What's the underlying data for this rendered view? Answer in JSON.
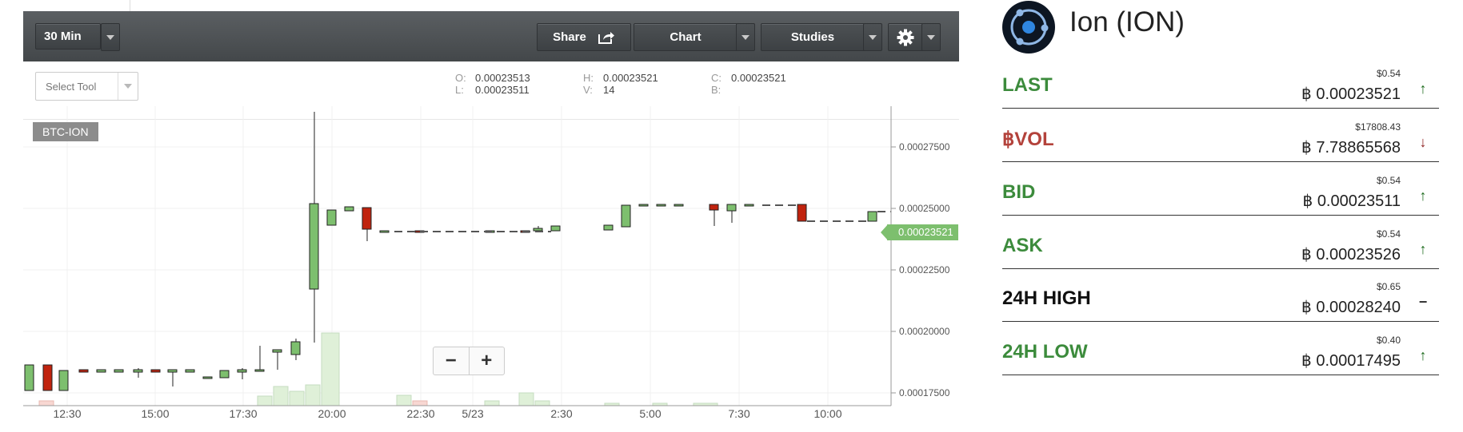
{
  "toolbar": {
    "interval": "30 Min",
    "share": "Share",
    "chart": "Chart",
    "studies": "Studies"
  },
  "infobar": {
    "select_tool": "Select Tool",
    "ohlc": {
      "o_label": "O:",
      "o": "0.00023513",
      "h_label": "H:",
      "h": "0.00023521",
      "c_label": "C:",
      "c": "0.00023521",
      "l_label": "L:",
      "l": "0.00023511",
      "v_label": "V:",
      "v": "14",
      "b_label": "B:",
      "b": ""
    }
  },
  "chart": {
    "pair": "BTC-ION",
    "last_price_tag": "0.00023521",
    "y_ticks": [
      "0.00027500",
      "0.00025000",
      "0.00022500",
      "0.00020000",
      "0.00017500"
    ],
    "x_ticks": [
      "12:30",
      "15:00",
      "17:30",
      "20:00",
      "22:30",
      "5/23",
      "2:30",
      "5:00",
      "7:30",
      "10:00"
    ],
    "zoom_out": "−",
    "zoom_in": "+",
    "colors": {
      "up": "#7dbf6e",
      "down": "#c0230e",
      "volume": "#dff0d8"
    }
  },
  "ticker": {
    "coin_name": "Ion (ION)",
    "rows": [
      {
        "label": "LAST",
        "usd": "$0.54",
        "btc": "฿ 0.00023521",
        "arrow": "↑",
        "color": "#3c8b3c",
        "arrow_color": "#1d6b1d"
      },
      {
        "label": "฿VOL",
        "usd": "$17808.43",
        "btc": "฿ 7.78865568",
        "arrow": "↓",
        "color": "#b3423b",
        "arrow_color": "#8b1a1a"
      },
      {
        "label": "BID",
        "usd": "$0.54",
        "btc": "฿ 0.00023511",
        "arrow": "↑",
        "color": "#3c8b3c",
        "arrow_color": "#1d6b1d"
      },
      {
        "label": "ASK",
        "usd": "$0.54",
        "btc": "฿ 0.00023526",
        "arrow": "↑",
        "color": "#3c8b3c",
        "arrow_color": "#1d6b1d"
      },
      {
        "label": "24H HIGH",
        "usd": "$0.65",
        "btc": "฿ 0.00028240",
        "arrow": "−",
        "color": "#111111",
        "arrow_color": "#333333"
      },
      {
        "label": "24H LOW",
        "usd": "$0.40",
        "btc": "฿ 0.00017495",
        "arrow": "↑",
        "color": "#3c8b3c",
        "arrow_color": "#1d6b1d"
      }
    ]
  }
}
